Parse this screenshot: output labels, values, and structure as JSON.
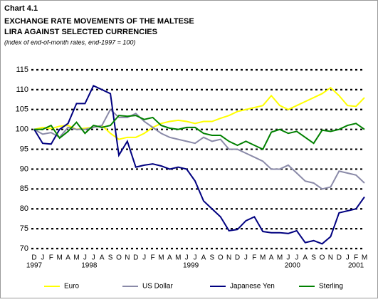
{
  "chart_data": {
    "type": "line",
    "title": "Chart 4.1",
    "subtitle": [
      "EXCHANGE RATE MOVEMENTS OF THE MALTESE",
      "LIRA AGAINST SELECTED CURRENCIES"
    ],
    "note": "(index of end-of-month rates, end-1997 = 100)",
    "categories": [
      "D",
      "J",
      "F",
      "M",
      "A",
      "M",
      "J",
      "J",
      "A",
      "S",
      "O",
      "N",
      "D",
      "J",
      "F",
      "M",
      "A",
      "M",
      "J",
      "J",
      "A",
      "S",
      "O",
      "N",
      "D",
      "J",
      "F",
      "M",
      "A",
      "M",
      "J",
      "J",
      "A",
      "S",
      "O",
      "N",
      "D",
      "J",
      "F",
      "M"
    ],
    "x_groups": [
      "1997",
      "1998",
      "1999",
      "2000",
      "2001"
    ],
    "series": [
      {
        "name": "Euro",
        "color": "#ffff00",
        "values": [
          100,
          100.5,
          100.2,
          100.8,
          101,
          100,
          100.3,
          100.5,
          101,
          99,
          97.5,
          98,
          98,
          99,
          100.5,
          101.5,
          102,
          102.3,
          102,
          101.5,
          102,
          102,
          102.8,
          103.5,
          104.5,
          105,
          105.5,
          106,
          108.5,
          106,
          105,
          106,
          107,
          108,
          109,
          110.5,
          108.5,
          106,
          105.8,
          108
        ]
      },
      {
        "name": "US Dollar",
        "color": "#8a8aa8",
        "values": [
          100,
          98.8,
          99.2,
          98,
          100.5,
          100,
          100,
          100.5,
          101,
          105,
          103,
          103,
          104,
          102,
          100.5,
          99,
          98,
          97.5,
          97,
          96.5,
          98,
          97,
          97.5,
          95,
          95,
          94,
          93,
          92,
          90,
          90,
          91,
          89,
          87,
          86.5,
          85,
          85.5,
          89.5,
          89,
          88.5,
          86.5
        ]
      },
      {
        "name": "Japanese Yen",
        "color": "#000080",
        "values": [
          100,
          96.5,
          96.3,
          100,
          101.5,
          106.5,
          106.5,
          111,
          110,
          109,
          93.5,
          97,
          90.5,
          91,
          91.3,
          90.8,
          90,
          90.5,
          90,
          87,
          82,
          80,
          78,
          74.5,
          74.8,
          77,
          78,
          74.3,
          74,
          74,
          73.8,
          74.5,
          71.5,
          72,
          71.2,
          73,
          79,
          79.5,
          80,
          83
        ]
      },
      {
        "name": "Sterling",
        "color": "#008000",
        "values": [
          100,
          100,
          101,
          97.8,
          99.5,
          101.8,
          99,
          101,
          100.5,
          101,
          103.5,
          103.3,
          103.5,
          102.5,
          103,
          101,
          100.3,
          100,
          100.5,
          100.5,
          99,
          98.5,
          98.5,
          97,
          96,
          97,
          96,
          95,
          99.3,
          100,
          99,
          99.5,
          98,
          96.5,
          99.8,
          99.5,
          100,
          101,
          101.5,
          100
        ]
      }
    ],
    "ylim": [
      70,
      115
    ],
    "yticks": [
      70,
      75,
      80,
      85,
      90,
      95,
      100,
      105,
      110,
      115
    ],
    "grid": true,
    "legend": "bottom"
  }
}
